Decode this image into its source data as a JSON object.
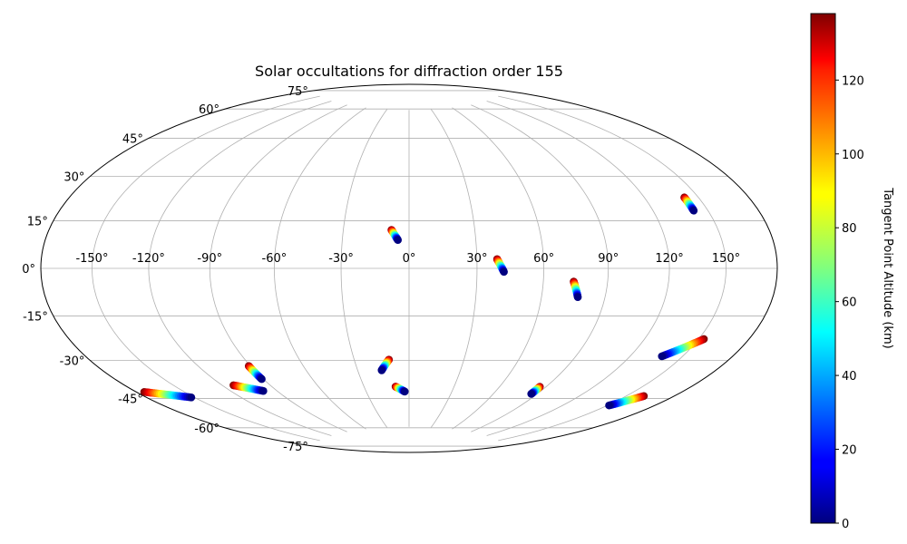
{
  "chart_data": {
    "type": "scatter",
    "projection": "hammer",
    "title": "Solar occultations for diffraction order 155",
    "grid": true,
    "longitude_ticks": [
      {
        "value": -150,
        "label": "-150°"
      },
      {
        "value": -120,
        "label": "-120°"
      },
      {
        "value": -90,
        "label": "-90°"
      },
      {
        "value": -60,
        "label": "-60°"
      },
      {
        "value": -30,
        "label": "-30°"
      },
      {
        "value": 0,
        "label": "0°"
      },
      {
        "value": 30,
        "label": "30°"
      },
      {
        "value": 60,
        "label": "60°"
      },
      {
        "value": 90,
        "label": "90°"
      },
      {
        "value": 120,
        "label": "120°"
      },
      {
        "value": 150,
        "label": "150°"
      }
    ],
    "latitude_ticks": [
      {
        "value": 75,
        "label": "75°"
      },
      {
        "value": 60,
        "label": "60°"
      },
      {
        "value": 45,
        "label": "45°"
      },
      {
        "value": 30,
        "label": "30°"
      },
      {
        "value": 15,
        "label": "15°"
      },
      {
        "value": 0,
        "label": "0°"
      },
      {
        "value": -15,
        "label": "-15°"
      },
      {
        "value": -30,
        "label": "-30°"
      },
      {
        "value": -45,
        "label": "-45°"
      },
      {
        "value": -60,
        "label": "-60°"
      },
      {
        "value": -75,
        "label": "-75°"
      }
    ],
    "colorbar": {
      "label": "Tangent Point Altitude (km)",
      "range": [
        0,
        138
      ],
      "colormap": "jet",
      "ticks": [
        {
          "value": 0,
          "label": "0"
        },
        {
          "value": 20,
          "label": "20"
        },
        {
          "value": 40,
          "label": "40"
        },
        {
          "value": 60,
          "label": "60"
        },
        {
          "value": 80,
          "label": "80"
        },
        {
          "value": 100,
          "label": "100"
        },
        {
          "value": 120,
          "label": "120"
        }
      ]
    },
    "series": [
      {
        "start": {
          "lon": -8,
          "lat": 17,
          "altitude": 138
        },
        "end": {
          "lon": -5,
          "lat": 12.5,
          "altitude": 0
        }
      },
      {
        "start": {
          "lon": 39,
          "lat": 4,
          "altitude": 138
        },
        "end": {
          "lon": 42,
          "lat": -1.5,
          "altitude": 0
        }
      },
      {
        "start": {
          "lon": 74,
          "lat": -5.5,
          "altitude": 138
        },
        "end": {
          "lon": 77,
          "lat": -12,
          "altitude": 0
        }
      },
      {
        "start": {
          "lon": 142,
          "lat": 26,
          "altitude": 138
        },
        "end": {
          "lon": 142,
          "lat": 21,
          "altitude": 0
        }
      },
      {
        "start": {
          "lon": 153,
          "lat": -25,
          "altitude": 138
        },
        "end": {
          "lon": 138,
          "lat": -33,
          "altitude": 0
        }
      },
      {
        "start": {
          "lon": 161,
          "lat": -47,
          "altitude": 138
        },
        "end": {
          "lon": 151,
          "lat": -53,
          "altitude": 0
        }
      },
      {
        "start": {
          "lon": 86,
          "lat": -51,
          "altitude": 138
        },
        "end": {
          "lon": 86,
          "lat": -54.5,
          "altitude": 0
        }
      },
      {
        "start": {
          "lon": -9,
          "lat": -54,
          "altitude": 138
        },
        "end": {
          "lon": -3,
          "lat": -56.5,
          "altitude": 0
        }
      },
      {
        "start": {
          "lon": -11,
          "lat": -41,
          "altitude": 138
        },
        "end": {
          "lon": -16,
          "lat": -46,
          "altitude": 0
        }
      },
      {
        "start": {
          "lon": -91,
          "lat": -41,
          "altitude": 138
        },
        "end": {
          "lon": -91,
          "lat": -47,
          "altitude": 0
        }
      },
      {
        "start": {
          "lon": -113,
          "lat": -48,
          "altitude": 138
        },
        "end": {
          "lon": -99,
          "lat": -52,
          "altitude": 0
        }
      },
      {
        "start": {
          "lon": -175,
          "lat": -43,
          "altitude": 138
        },
        "end": {
          "lon": -152,
          "lat": -49,
          "altitude": 0
        }
      }
    ]
  }
}
